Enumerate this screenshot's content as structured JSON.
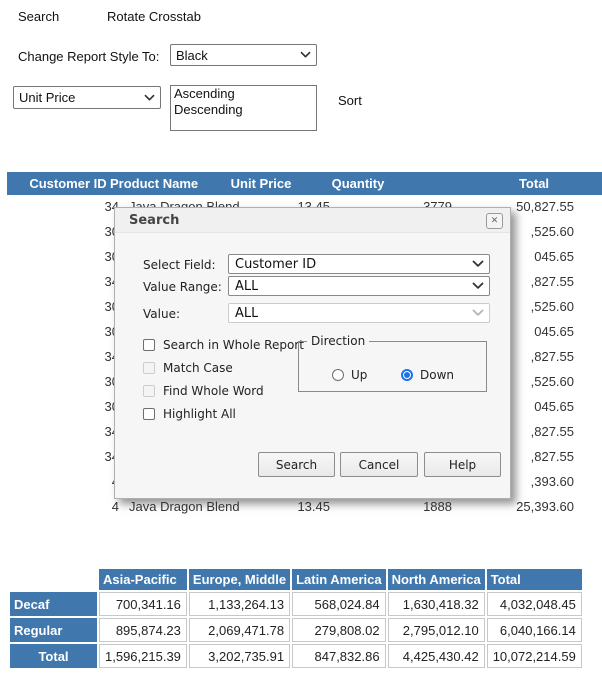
{
  "toolbar": {
    "search_link": "Search",
    "rotate_crosstab_link": "Rotate Crosstab"
  },
  "style_control": {
    "label": "Change Report Style To:",
    "selected": "Black"
  },
  "sort_control": {
    "field_selected": "Unit Price",
    "options": [
      "Ascending",
      "Descending"
    ],
    "sort_label": "Sort"
  },
  "report_table": {
    "columns": [
      "Customer ID",
      "Product Name",
      "Unit Price",
      "Quantity",
      "Total"
    ],
    "rows": [
      {
        "customer_id": "34",
        "product": "Java Dragon Blend",
        "unit_price": "13.45",
        "quantity": "3779",
        "total": "50,827.55"
      },
      {
        "customer_id": "30",
        "product": "",
        "unit_price": "",
        "quantity": "",
        "total": ",525.60"
      },
      {
        "customer_id": "30",
        "product": "",
        "unit_price": "",
        "quantity": "",
        "total": "045.65"
      },
      {
        "customer_id": "34",
        "product": "",
        "unit_price": "",
        "quantity": "",
        "total": ",827.55"
      },
      {
        "customer_id": "30",
        "product": "",
        "unit_price": "",
        "quantity": "",
        "total": ",525.60"
      },
      {
        "customer_id": "30",
        "product": "",
        "unit_price": "",
        "quantity": "",
        "total": "045.65"
      },
      {
        "customer_id": "34",
        "product": "",
        "unit_price": "",
        "quantity": "",
        "total": ",827.55"
      },
      {
        "customer_id": "30",
        "product": "",
        "unit_price": "",
        "quantity": "",
        "total": ",525.60"
      },
      {
        "customer_id": "30",
        "product": "",
        "unit_price": "",
        "quantity": "",
        "total": "045.65"
      },
      {
        "customer_id": "34",
        "product": "",
        "unit_price": "",
        "quantity": "",
        "total": ",827.55"
      },
      {
        "customer_id": "34",
        "product": "",
        "unit_price": "",
        "quantity": "",
        "total": ",827.55"
      },
      {
        "customer_id": "4",
        "product": "",
        "unit_price": "",
        "quantity": "",
        "total": ",393.60"
      },
      {
        "customer_id": "4",
        "product": "Java Dragon Blend",
        "unit_price": "13.45",
        "quantity": "1888",
        "total": "25,393.60"
      }
    ]
  },
  "search_dialog": {
    "title": "Search",
    "close_glyph": "✕",
    "fields": [
      {
        "label": "Select Field:",
        "value": "Customer ID",
        "disabled": false
      },
      {
        "label": "Value Range:",
        "value": "ALL",
        "disabled": false
      },
      {
        "label": "Value:",
        "value": "ALL",
        "disabled": true
      }
    ],
    "checkboxes": [
      {
        "label": "Search in Whole Report",
        "checked": false,
        "disabled": false
      },
      {
        "label": "Match Case",
        "checked": false,
        "disabled": true
      },
      {
        "label": "Find Whole Word",
        "checked": false,
        "disabled": true
      },
      {
        "label": "Highlight All",
        "checked": false,
        "disabled": false
      }
    ],
    "direction": {
      "legend": "Direction",
      "options": [
        {
          "label": "Up",
          "selected": false
        },
        {
          "label": "Down",
          "selected": true
        }
      ]
    },
    "buttons": [
      "Search",
      "Cancel",
      "Help"
    ]
  },
  "crosstab": {
    "col_headers": [
      "Asia-Pacific",
      "Europe, Middle",
      "Latin America",
      "North America",
      "Total"
    ],
    "rows": [
      {
        "label": "Decaf",
        "values": [
          "700,341.16",
          "1,133,264.13",
          "568,024.84",
          "1,630,418.32",
          "4,032,048.45"
        ]
      },
      {
        "label": "Regular",
        "values": [
          "895,874.23",
          "2,069,471.78",
          "279,808.02",
          "2,795,012.10",
          "6,040,166.14"
        ]
      },
      {
        "label": "Total",
        "values": [
          "1,596,215.39",
          "3,202,735.91",
          "847,832.86",
          "4,425,430.42",
          "10,072,214.59"
        ]
      }
    ]
  },
  "colors": {
    "header_blue": "#4077AD",
    "radio_blue": "#1a73e8"
  }
}
